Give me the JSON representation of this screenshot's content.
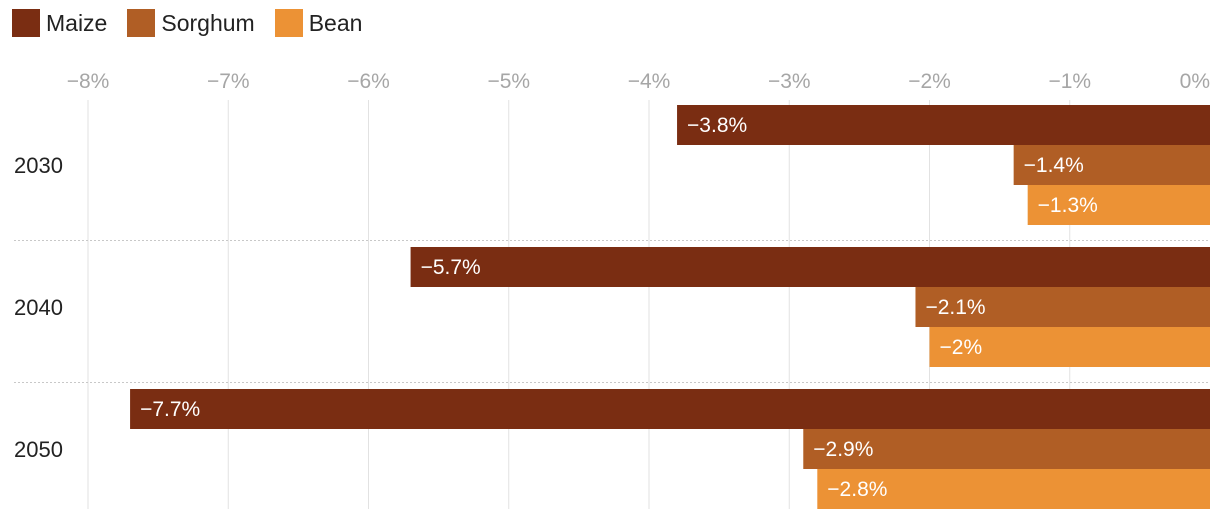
{
  "chart_data": {
    "type": "bar",
    "orientation": "horizontal",
    "categories": [
      "2030",
      "2040",
      "2050"
    ],
    "series": [
      {
        "name": "Maize",
        "color": "#7a2d12",
        "values": [
          -3.8,
          -5.7,
          -7.7
        ],
        "labels": [
          "−3.8%",
          "−5.7%",
          "−7.7%"
        ]
      },
      {
        "name": "Sorghum",
        "color": "#b05e25",
        "values": [
          -1.4,
          -2.1,
          -2.9
        ],
        "labels": [
          "−1.4%",
          "−2.1%",
          "−2.9%"
        ]
      },
      {
        "name": "Bean",
        "color": "#ec9235",
        "values": [
          -1.3,
          -2.0,
          -2.8
        ],
        "labels": [
          "−1.3%",
          "−2%",
          "−2.8%"
        ]
      }
    ],
    "xlim": [
      -8,
      0
    ],
    "xticks": [
      -8,
      -7,
      -6,
      -5,
      -4,
      -3,
      -2,
      -1,
      0
    ],
    "xtick_labels": [
      "−8%",
      "−7%",
      "−6%",
      "−5%",
      "−4%",
      "−3%",
      "−2%",
      "−1%",
      "0%"
    ],
    "grid": true,
    "legend_position": "top-left",
    "title": "",
    "xlabel": "",
    "ylabel": ""
  }
}
